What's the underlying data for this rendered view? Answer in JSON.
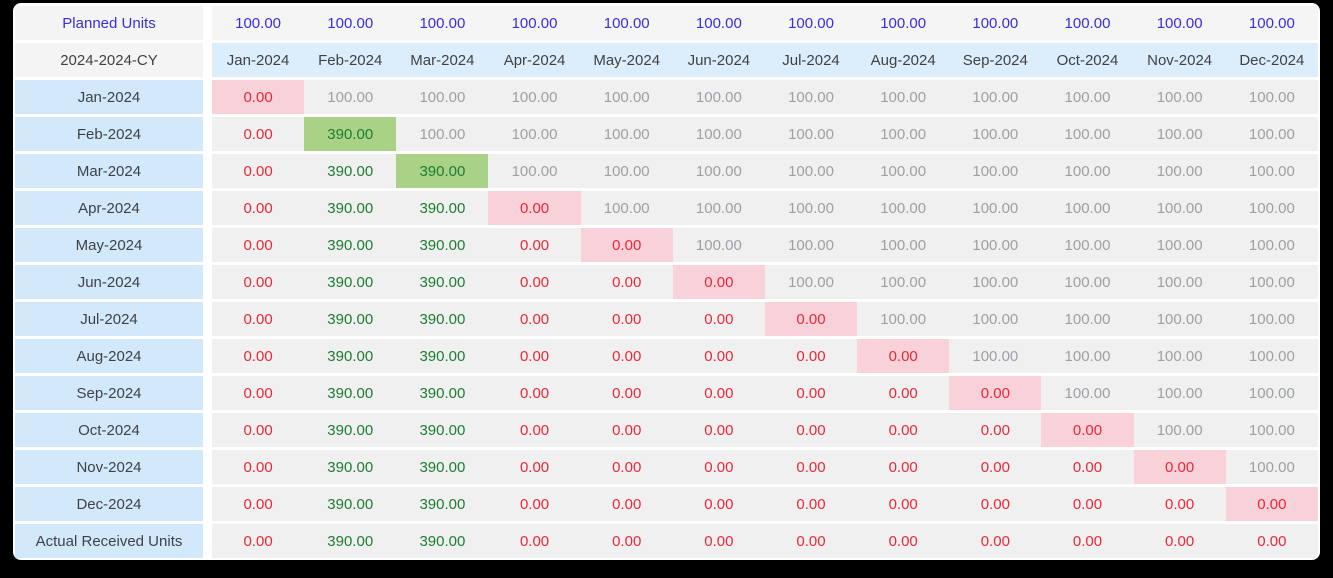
{
  "colors": {
    "page_bg": "#000000",
    "card_bg": "#ffffff",
    "row_label_bg": "#d2e9fc",
    "month_header_bg": "#dceefc",
    "neutral_header_bg": "#f4f4f4",
    "planned_value_bg": "#f5f5f5",
    "cell_bg": "#f0f0f0",
    "diag_zero_bg": "#f8d1d9",
    "diag_full_bg": "#a9d287",
    "planned_text": "#3a2edb",
    "zero_text": "#ea2839",
    "received_text": "#1e7c34",
    "future_text": "#9ba1a6",
    "header_text": "#3f4245"
  },
  "matrix": {
    "planned_row": {
      "label": "Planned Units",
      "values": [
        "100.00",
        "100.00",
        "100.00",
        "100.00",
        "100.00",
        "100.00",
        "100.00",
        "100.00",
        "100.00",
        "100.00",
        "100.00",
        "100.00"
      ]
    },
    "header_row": {
      "label": "2024-2024-CY",
      "months": [
        "Jan-2024",
        "Feb-2024",
        "Mar-2024",
        "Apr-2024",
        "May-2024",
        "Jun-2024",
        "Jul-2024",
        "Aug-2024",
        "Sep-2024",
        "Oct-2024",
        "Nov-2024",
        "Dec-2024"
      ]
    },
    "rows": [
      {
        "label": "Jan-2024",
        "cells": [
          {
            "v": "0.00",
            "c": "red",
            "hl": "pink"
          },
          {
            "v": "100.00",
            "c": "gray"
          },
          {
            "v": "100.00",
            "c": "gray"
          },
          {
            "v": "100.00",
            "c": "gray"
          },
          {
            "v": "100.00",
            "c": "gray"
          },
          {
            "v": "100.00",
            "c": "gray"
          },
          {
            "v": "100.00",
            "c": "gray"
          },
          {
            "v": "100.00",
            "c": "gray"
          },
          {
            "v": "100.00",
            "c": "gray"
          },
          {
            "v": "100.00",
            "c": "gray"
          },
          {
            "v": "100.00",
            "c": "gray"
          },
          {
            "v": "100.00",
            "c": "gray"
          }
        ]
      },
      {
        "label": "Feb-2024",
        "cells": [
          {
            "v": "0.00",
            "c": "red"
          },
          {
            "v": "390.00",
            "c": "green",
            "hl": "green"
          },
          {
            "v": "100.00",
            "c": "gray"
          },
          {
            "v": "100.00",
            "c": "gray"
          },
          {
            "v": "100.00",
            "c": "gray"
          },
          {
            "v": "100.00",
            "c": "gray"
          },
          {
            "v": "100.00",
            "c": "gray"
          },
          {
            "v": "100.00",
            "c": "gray"
          },
          {
            "v": "100.00",
            "c": "gray"
          },
          {
            "v": "100.00",
            "c": "gray"
          },
          {
            "v": "100.00",
            "c": "gray"
          },
          {
            "v": "100.00",
            "c": "gray"
          }
        ]
      },
      {
        "label": "Mar-2024",
        "cells": [
          {
            "v": "0.00",
            "c": "red"
          },
          {
            "v": "390.00",
            "c": "green"
          },
          {
            "v": "390.00",
            "c": "green",
            "hl": "green"
          },
          {
            "v": "100.00",
            "c": "gray"
          },
          {
            "v": "100.00",
            "c": "gray"
          },
          {
            "v": "100.00",
            "c": "gray"
          },
          {
            "v": "100.00",
            "c": "gray"
          },
          {
            "v": "100.00",
            "c": "gray"
          },
          {
            "v": "100.00",
            "c": "gray"
          },
          {
            "v": "100.00",
            "c": "gray"
          },
          {
            "v": "100.00",
            "c": "gray"
          },
          {
            "v": "100.00",
            "c": "gray"
          }
        ]
      },
      {
        "label": "Apr-2024",
        "cells": [
          {
            "v": "0.00",
            "c": "red"
          },
          {
            "v": "390.00",
            "c": "green"
          },
          {
            "v": "390.00",
            "c": "green"
          },
          {
            "v": "0.00",
            "c": "red",
            "hl": "pink"
          },
          {
            "v": "100.00",
            "c": "gray"
          },
          {
            "v": "100.00",
            "c": "gray"
          },
          {
            "v": "100.00",
            "c": "gray"
          },
          {
            "v": "100.00",
            "c": "gray"
          },
          {
            "v": "100.00",
            "c": "gray"
          },
          {
            "v": "100.00",
            "c": "gray"
          },
          {
            "v": "100.00",
            "c": "gray"
          },
          {
            "v": "100.00",
            "c": "gray"
          }
        ]
      },
      {
        "label": "May-2024",
        "cells": [
          {
            "v": "0.00",
            "c": "red"
          },
          {
            "v": "390.00",
            "c": "green"
          },
          {
            "v": "390.00",
            "c": "green"
          },
          {
            "v": "0.00",
            "c": "red"
          },
          {
            "v": "0.00",
            "c": "red",
            "hl": "pink"
          },
          {
            "v": "100.00",
            "c": "gray"
          },
          {
            "v": "100.00",
            "c": "gray"
          },
          {
            "v": "100.00",
            "c": "gray"
          },
          {
            "v": "100.00",
            "c": "gray"
          },
          {
            "v": "100.00",
            "c": "gray"
          },
          {
            "v": "100.00",
            "c": "gray"
          },
          {
            "v": "100.00",
            "c": "gray"
          }
        ]
      },
      {
        "label": "Jun-2024",
        "cells": [
          {
            "v": "0.00",
            "c": "red"
          },
          {
            "v": "390.00",
            "c": "green"
          },
          {
            "v": "390.00",
            "c": "green"
          },
          {
            "v": "0.00",
            "c": "red"
          },
          {
            "v": "0.00",
            "c": "red"
          },
          {
            "v": "0.00",
            "c": "red",
            "hl": "pink"
          },
          {
            "v": "100.00",
            "c": "gray"
          },
          {
            "v": "100.00",
            "c": "gray"
          },
          {
            "v": "100.00",
            "c": "gray"
          },
          {
            "v": "100.00",
            "c": "gray"
          },
          {
            "v": "100.00",
            "c": "gray"
          },
          {
            "v": "100.00",
            "c": "gray"
          }
        ]
      },
      {
        "label": "Jul-2024",
        "cells": [
          {
            "v": "0.00",
            "c": "red"
          },
          {
            "v": "390.00",
            "c": "green"
          },
          {
            "v": "390.00",
            "c": "green"
          },
          {
            "v": "0.00",
            "c": "red"
          },
          {
            "v": "0.00",
            "c": "red"
          },
          {
            "v": "0.00",
            "c": "red"
          },
          {
            "v": "0.00",
            "c": "red",
            "hl": "pink"
          },
          {
            "v": "100.00",
            "c": "gray"
          },
          {
            "v": "100.00",
            "c": "gray"
          },
          {
            "v": "100.00",
            "c": "gray"
          },
          {
            "v": "100.00",
            "c": "gray"
          },
          {
            "v": "100.00",
            "c": "gray"
          }
        ]
      },
      {
        "label": "Aug-2024",
        "cells": [
          {
            "v": "0.00",
            "c": "red"
          },
          {
            "v": "390.00",
            "c": "green"
          },
          {
            "v": "390.00",
            "c": "green"
          },
          {
            "v": "0.00",
            "c": "red"
          },
          {
            "v": "0.00",
            "c": "red"
          },
          {
            "v": "0.00",
            "c": "red"
          },
          {
            "v": "0.00",
            "c": "red"
          },
          {
            "v": "0.00",
            "c": "red",
            "hl": "pink"
          },
          {
            "v": "100.00",
            "c": "gray"
          },
          {
            "v": "100.00",
            "c": "gray"
          },
          {
            "v": "100.00",
            "c": "gray"
          },
          {
            "v": "100.00",
            "c": "gray"
          }
        ]
      },
      {
        "label": "Sep-2024",
        "cells": [
          {
            "v": "0.00",
            "c": "red"
          },
          {
            "v": "390.00",
            "c": "green"
          },
          {
            "v": "390.00",
            "c": "green"
          },
          {
            "v": "0.00",
            "c": "red"
          },
          {
            "v": "0.00",
            "c": "red"
          },
          {
            "v": "0.00",
            "c": "red"
          },
          {
            "v": "0.00",
            "c": "red"
          },
          {
            "v": "0.00",
            "c": "red"
          },
          {
            "v": "0.00",
            "c": "red",
            "hl": "pink"
          },
          {
            "v": "100.00",
            "c": "gray"
          },
          {
            "v": "100.00",
            "c": "gray"
          },
          {
            "v": "100.00",
            "c": "gray"
          }
        ]
      },
      {
        "label": "Oct-2024",
        "cells": [
          {
            "v": "0.00",
            "c": "red"
          },
          {
            "v": "390.00",
            "c": "green"
          },
          {
            "v": "390.00",
            "c": "green"
          },
          {
            "v": "0.00",
            "c": "red"
          },
          {
            "v": "0.00",
            "c": "red"
          },
          {
            "v": "0.00",
            "c": "red"
          },
          {
            "v": "0.00",
            "c": "red"
          },
          {
            "v": "0.00",
            "c": "red"
          },
          {
            "v": "0.00",
            "c": "red"
          },
          {
            "v": "0.00",
            "c": "red",
            "hl": "pink"
          },
          {
            "v": "100.00",
            "c": "gray"
          },
          {
            "v": "100.00",
            "c": "gray"
          }
        ]
      },
      {
        "label": "Nov-2024",
        "cells": [
          {
            "v": "0.00",
            "c": "red"
          },
          {
            "v": "390.00",
            "c": "green"
          },
          {
            "v": "390.00",
            "c": "green"
          },
          {
            "v": "0.00",
            "c": "red"
          },
          {
            "v": "0.00",
            "c": "red"
          },
          {
            "v": "0.00",
            "c": "red"
          },
          {
            "v": "0.00",
            "c": "red"
          },
          {
            "v": "0.00",
            "c": "red"
          },
          {
            "v": "0.00",
            "c": "red"
          },
          {
            "v": "0.00",
            "c": "red"
          },
          {
            "v": "0.00",
            "c": "red",
            "hl": "pink"
          },
          {
            "v": "100.00",
            "c": "gray"
          }
        ]
      },
      {
        "label": "Dec-2024",
        "cells": [
          {
            "v": "0.00",
            "c": "red"
          },
          {
            "v": "390.00",
            "c": "green"
          },
          {
            "v": "390.00",
            "c": "green"
          },
          {
            "v": "0.00",
            "c": "red"
          },
          {
            "v": "0.00",
            "c": "red"
          },
          {
            "v": "0.00",
            "c": "red"
          },
          {
            "v": "0.00",
            "c": "red"
          },
          {
            "v": "0.00",
            "c": "red"
          },
          {
            "v": "0.00",
            "c": "red"
          },
          {
            "v": "0.00",
            "c": "red"
          },
          {
            "v": "0.00",
            "c": "red"
          },
          {
            "v": "0.00",
            "c": "red",
            "hl": "pink"
          }
        ]
      }
    ],
    "footer_row": {
      "label": "Actual Received Units",
      "cells": [
        {
          "v": "0.00",
          "c": "red"
        },
        {
          "v": "390.00",
          "c": "green"
        },
        {
          "v": "390.00",
          "c": "green"
        },
        {
          "v": "0.00",
          "c": "red"
        },
        {
          "v": "0.00",
          "c": "red"
        },
        {
          "v": "0.00",
          "c": "red"
        },
        {
          "v": "0.00",
          "c": "red"
        },
        {
          "v": "0.00",
          "c": "red"
        },
        {
          "v": "0.00",
          "c": "red"
        },
        {
          "v": "0.00",
          "c": "red"
        },
        {
          "v": "0.00",
          "c": "red"
        },
        {
          "v": "0.00",
          "c": "red"
        }
      ]
    }
  }
}
